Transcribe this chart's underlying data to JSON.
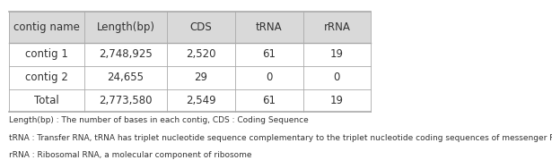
{
  "headers": [
    "contig name",
    "Length(bp)",
    "CDS",
    "tRNA",
    "rRNA"
  ],
  "rows": [
    [
      "contig 1",
      "2,748,925",
      "2,520",
      "61",
      "19"
    ],
    [
      "contig 2",
      "24,655",
      "29",
      "0",
      "0"
    ],
    [
      "Total",
      "2,773,580",
      "2,549",
      "61",
      "19"
    ]
  ],
  "header_bg": "#d9d9d9",
  "border_color": "#aaaaaa",
  "text_color": "#333333",
  "header_fontsize": 8.5,
  "cell_fontsize": 8.5,
  "footnote_fontsize": 6.5,
  "footnotes": [
    "Length(bp) : The number of bases in each contig, CDS : Coding Sequence",
    "tRNA : Transfer RNA, tRNA has triplet nucleotide sequence complementary to the triplet nucleotide coding sequences of messenger RNA (mRNA)",
    "rRNA : Ribosomal RNA, a molecular component of ribosome"
  ],
  "col_ratios": [
    0.2,
    0.22,
    0.18,
    0.18,
    0.18
  ]
}
